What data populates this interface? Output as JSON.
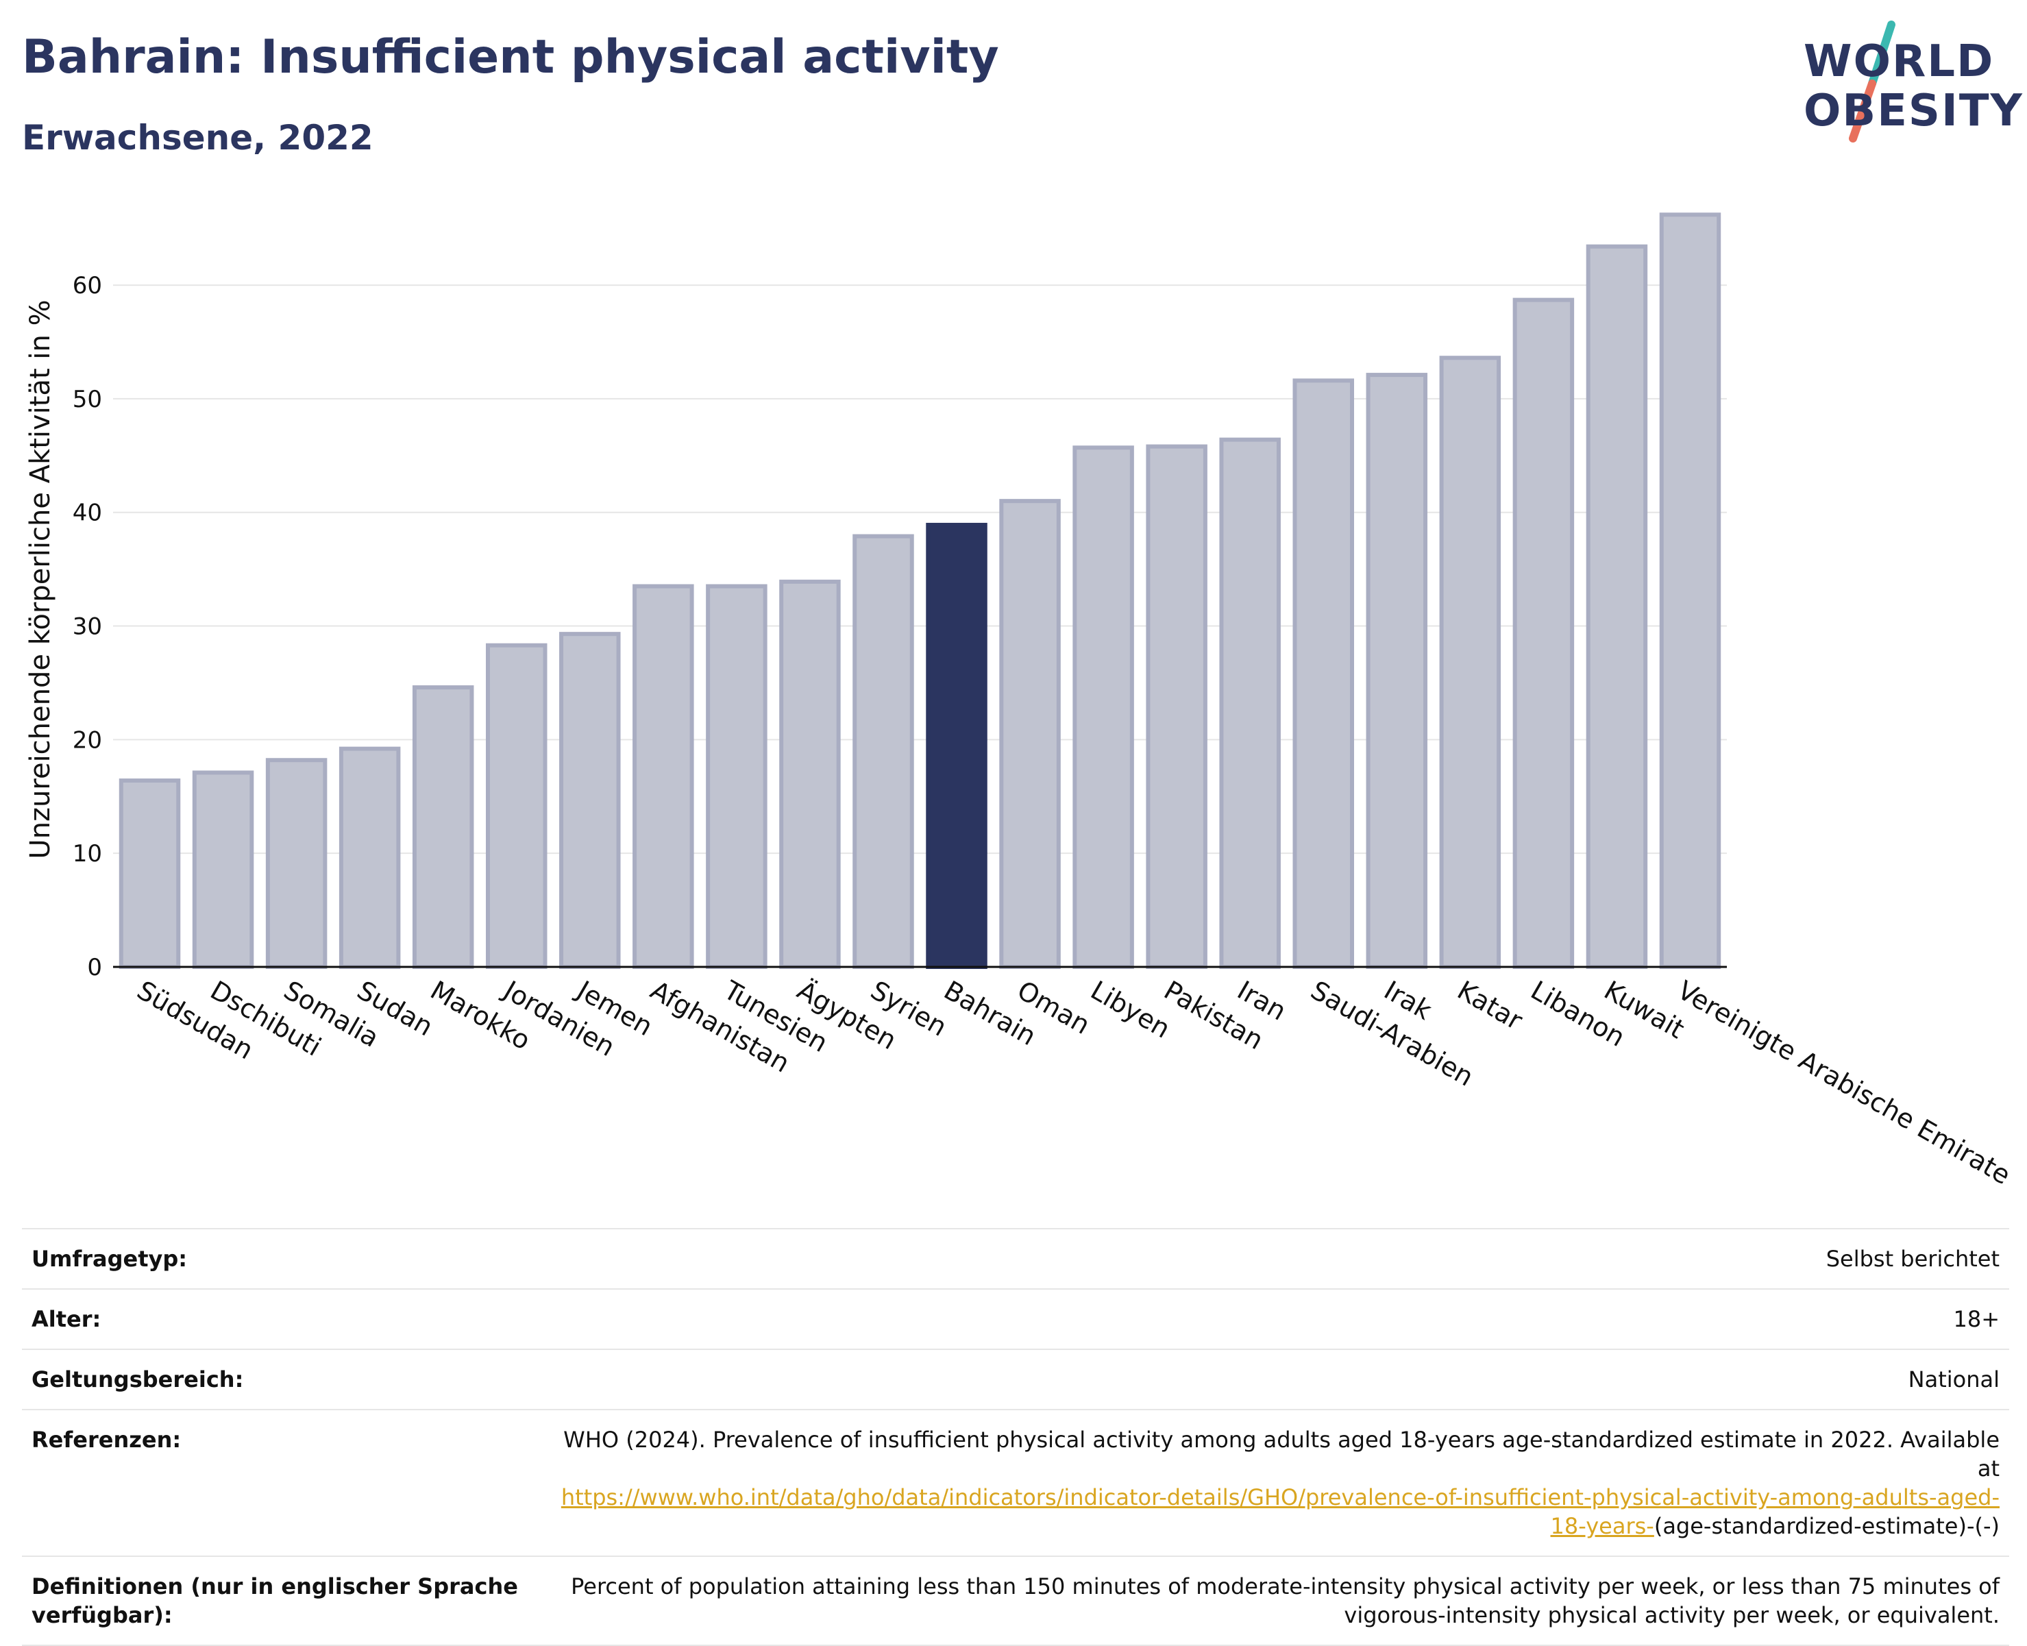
{
  "header": {
    "title": "Bahrain: Insufficient physical activity",
    "subtitle": "Erwachsene, 2022"
  },
  "logo": {
    "line1": "WORLD",
    "line2": "OBESITY",
    "colors": {
      "text": "#2b3560",
      "slash_top": "#3bb8b0",
      "slash_bottom": "#e8705c"
    }
  },
  "colors": {
    "bar": "#c0c3d0",
    "bar_stroke": "#a9adc2",
    "highlight": "#2b3560",
    "grid": "#e6e6e6",
    "axis": "#111111"
  },
  "chart_data": {
    "type": "bar",
    "ylabel": "Unzureichende körperliche Aktivität in %",
    "xlabel": "",
    "ylim": [
      0,
      67
    ],
    "yticks": [
      0,
      10,
      20,
      30,
      40,
      50,
      60
    ],
    "grid": true,
    "highlight": "Bahrain",
    "categories": [
      "Südsudan",
      "Dschibuti",
      "Somalia",
      "Sudan",
      "Marokko",
      "Jordanien",
      "Jemen",
      "Afghanistan",
      "Tunesien",
      "Ägypten",
      "Syrien",
      "Bahrain",
      "Oman",
      "Libyen",
      "Pakistan",
      "Iran",
      "Saudi-Arabien",
      "Irak",
      "Katar",
      "Libanon",
      "Kuwait",
      "Vereinigte Arabische Emirate"
    ],
    "values": [
      16.4,
      17.1,
      18.2,
      19.2,
      24.6,
      28.3,
      29.3,
      33.5,
      33.5,
      33.9,
      37.9,
      38.9,
      41.0,
      45.7,
      45.8,
      46.4,
      51.6,
      52.1,
      53.6,
      58.7,
      63.4,
      66.2
    ]
  },
  "info": [
    {
      "label": "Umfragetyp:",
      "value": "Selbst berichtet"
    },
    {
      "label": "Alter:",
      "value": "18+"
    },
    {
      "label": "Geltungsbereich:",
      "value": "National"
    },
    {
      "label": "Referenzen:",
      "value_prefix": "WHO (2024). Prevalence of insufficient physical activity among adults aged 18-years age-standardized estimate in 2022. Available at",
      "link": "https://www.who.int/data/gho/data/indicators/indicator-details/GHO/prevalence-of-insufficient-physical-activity-among-adults-aged-18-years-",
      "value_suffix": "(age-standardized-estimate)-(-)"
    },
    {
      "label": "Definitionen (nur in englischer Sprache verfügbar):",
      "value": "Percent of population attaining less than 150 minutes of moderate-intensity physical activity per week, or less than 75 minutes of vigorous-intensity physical activity per week, or equivalent."
    }
  ]
}
